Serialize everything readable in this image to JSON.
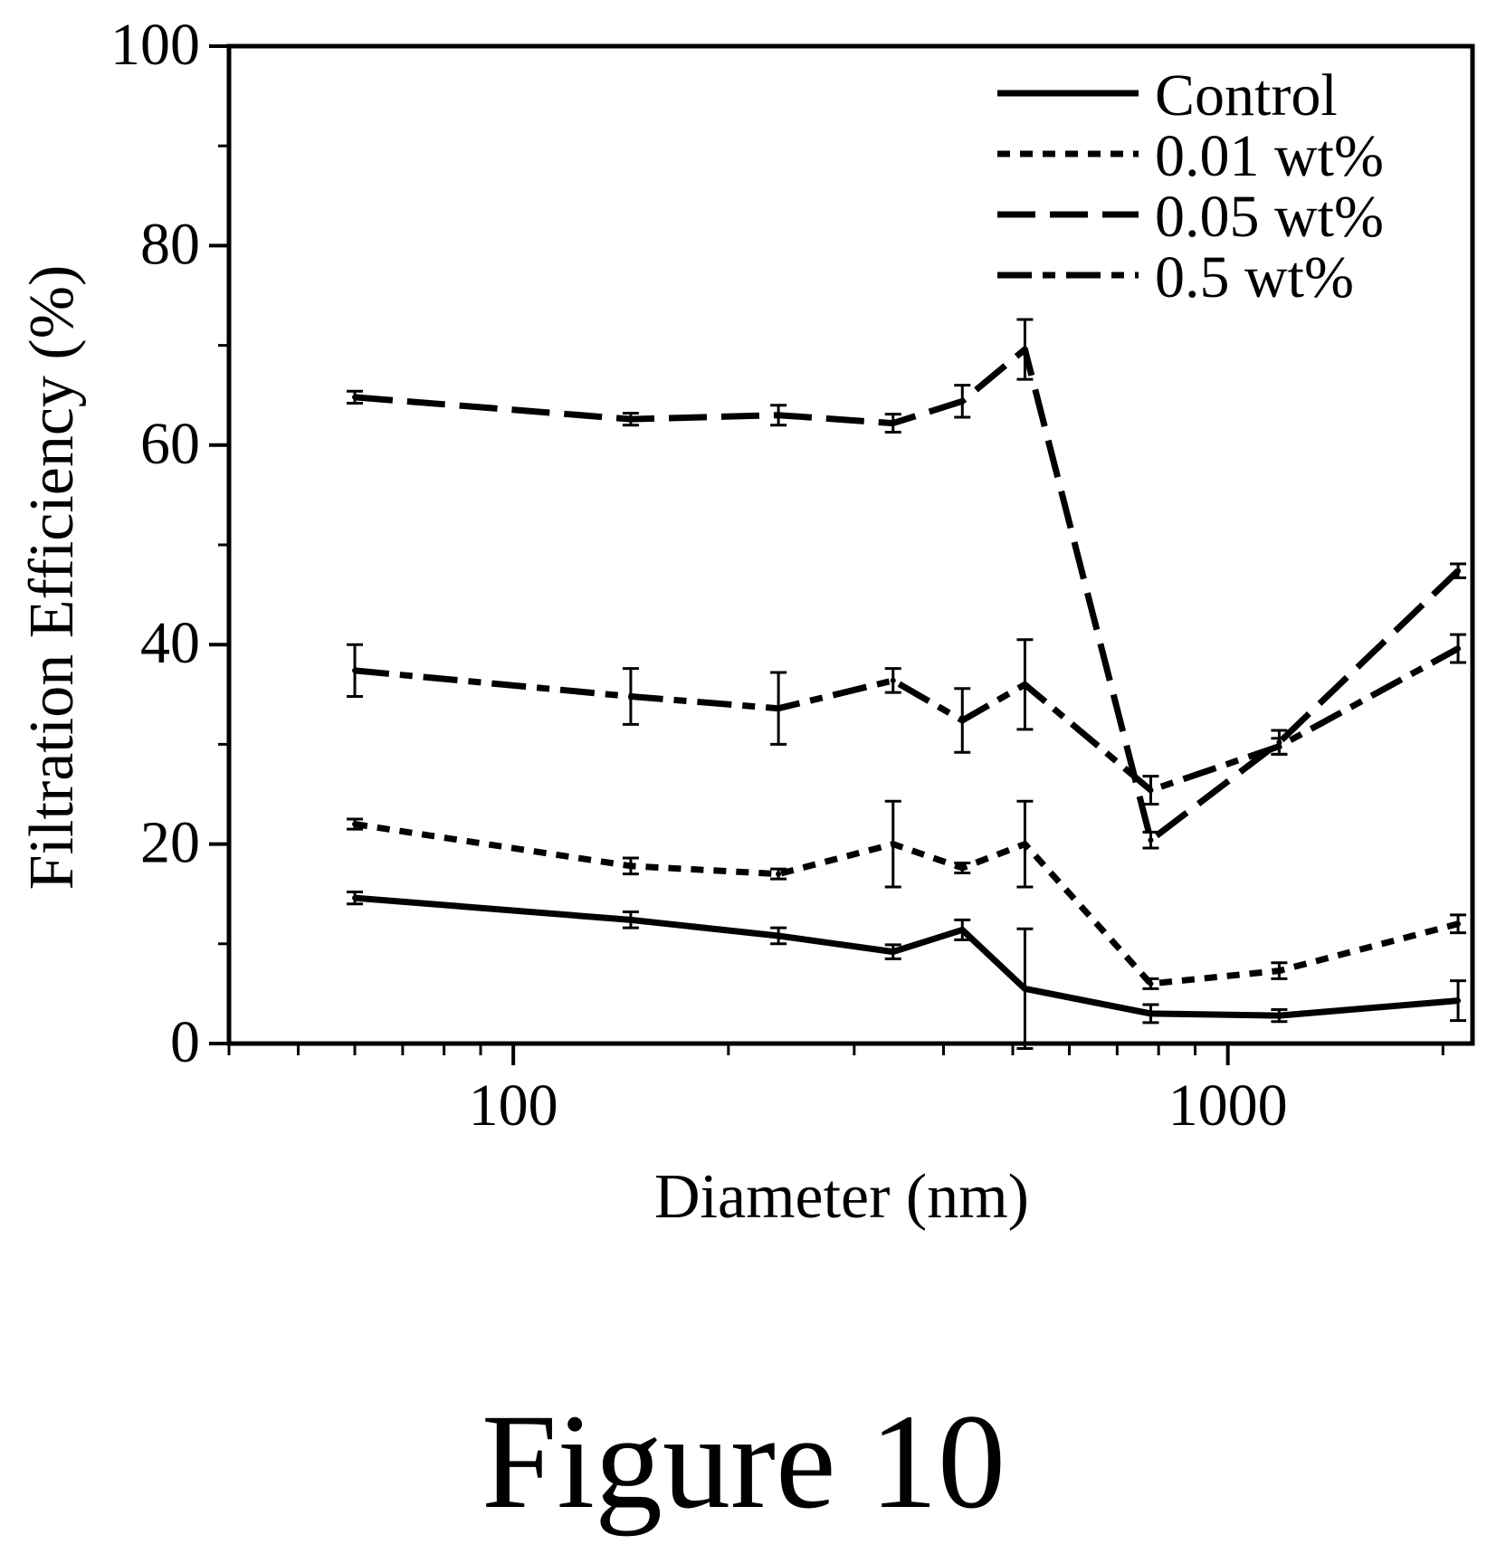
{
  "figure_label": "Figure 10",
  "chart_data": {
    "type": "line",
    "xlabel": "Diameter (nm)",
    "ylabel": "Filtration Efficiency (%)",
    "x_scale": "log",
    "xlim": [
      40,
      2200
    ],
    "ylim": [
      0,
      100
    ],
    "xticks": [
      100,
      1000
    ],
    "xtick_labels": [
      "100",
      "1000"
    ],
    "yticks": [
      0,
      20,
      40,
      60,
      80,
      100
    ],
    "ytick_labels": [
      "0",
      "20",
      "40",
      "60",
      "80",
      "100"
    ],
    "grid": false,
    "legend_position": "top-right",
    "x": [
      60,
      146,
      235,
      340,
      425,
      520,
      780,
      1180,
      2100
    ],
    "series": [
      {
        "name": "Control",
        "dash": "solid",
        "values": [
          14.6,
          12.4,
          10.8,
          9.2,
          11.4,
          5.5,
          3.0,
          2.8,
          4.3
        ],
        "errors": [
          0.6,
          0.8,
          0.8,
          0.7,
          1.0,
          6.0,
          0.9,
          0.6,
          2.0
        ]
      },
      {
        "name": "0.01 wt%",
        "dash": "short-dash",
        "values": [
          22.0,
          17.8,
          17.0,
          20.0,
          17.6,
          20.0,
          6.0,
          7.3,
          12.0
        ],
        "errors": [
          0.5,
          0.8,
          0.5,
          4.3,
          0.5,
          4.3,
          0.5,
          0.8,
          0.9
        ]
      },
      {
        "name": "0.05 wt%",
        "dash": "long-dash",
        "values": [
          64.8,
          62.6,
          63.0,
          62.2,
          64.4,
          69.6,
          20.4,
          30.2,
          47.4
        ],
        "errors": [
          0.6,
          0.6,
          1.0,
          0.9,
          1.6,
          3.0,
          0.8,
          1.2,
          0.7
        ]
      },
      {
        "name": "0.5 wt%",
        "dash": "dash-short-dash",
        "values": [
          37.4,
          34.8,
          33.6,
          36.4,
          32.4,
          36.0,
          25.4,
          29.8,
          39.6
        ],
        "errors": [
          2.6,
          2.8,
          3.6,
          1.2,
          3.2,
          4.5,
          1.4,
          0.8,
          1.4
        ]
      }
    ]
  }
}
